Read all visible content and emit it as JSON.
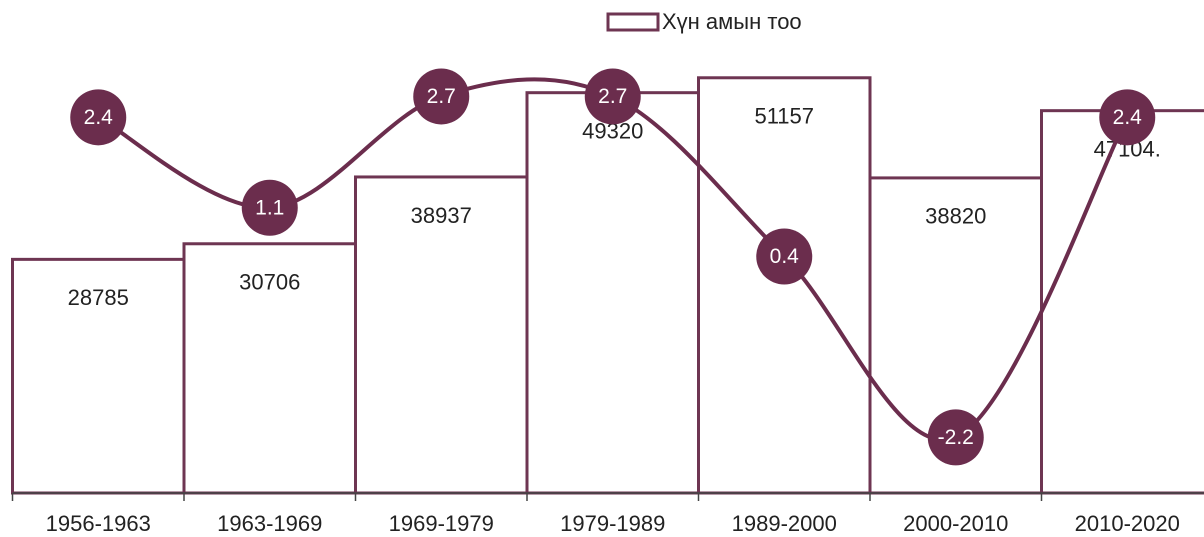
{
  "chart_data": {
    "type": "bar",
    "categories": [
      "1956-1963",
      "1963-1969",
      "1969-1979",
      "1979-1989",
      "1989-2000",
      "2000-2010",
      "2010-2020"
    ],
    "series": [
      {
        "name": "Хүн амын тоо",
        "type": "bar",
        "color": "#6e3552",
        "values": [
          28785,
          30706,
          38937,
          49320,
          51157,
          38820,
          47104
        ],
        "value_labels": [
          "28785",
          "30706",
          "38937",
          "49320",
          "51157",
          "38820",
          "47104."
        ]
      },
      {
        "type": "line",
        "axis": "y2",
        "color": "#6b2d4d",
        "values": [
          2.4,
          1.1,
          2.7,
          2.7,
          0.4,
          -2.2,
          2.4
        ]
      }
    ],
    "ylim": [
      0,
      60000
    ],
    "y2lim": [
      -3,
      4
    ],
    "legend": "top"
  }
}
